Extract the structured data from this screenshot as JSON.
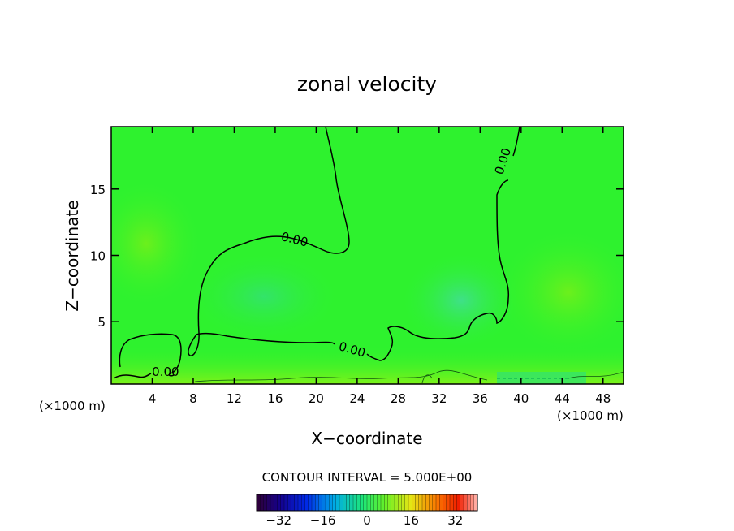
{
  "chart_data": {
    "type": "contour",
    "title": "zonal velocity",
    "xlabel": "X−coordinate",
    "ylabel": "Z−coordinate",
    "x_unit_left": "(×1000 m)",
    "x_unit_right": "(×1000 m)",
    "xlim": [
      0,
      50
    ],
    "ylim": [
      0.3,
      19.7
    ],
    "x_ticks": [
      4,
      8,
      12,
      16,
      20,
      24,
      28,
      32,
      36,
      40,
      44,
      48
    ],
    "y_ticks": [
      5,
      10,
      15
    ],
    "contour_labels": [
      {
        "text": "0.00",
        "x": 17.8,
        "y": 10.9
      },
      {
        "text": "0.00",
        "x": 38.6,
        "y": 17.0
      },
      {
        "text": "0.00",
        "x": 23.4,
        "y": 2.6
      },
      {
        "text": "0.00",
        "x": 5.3,
        "y": 0.9
      }
    ],
    "contour_interval_text": "CONTOUR INTERVAL = 5.000E+00",
    "colorbar": {
      "range": [
        -40,
        40
      ],
      "tick_values": [
        -32,
        -16,
        0,
        16,
        32
      ],
      "tick_labels": [
        "−32",
        "−16",
        "0",
        "16",
        "32"
      ]
    },
    "colors": {
      "field": "#2ef22e",
      "negative_pool": "#33e36a",
      "positive_pool": "#5ef019",
      "near_surface": "#7ef21a"
    }
  }
}
